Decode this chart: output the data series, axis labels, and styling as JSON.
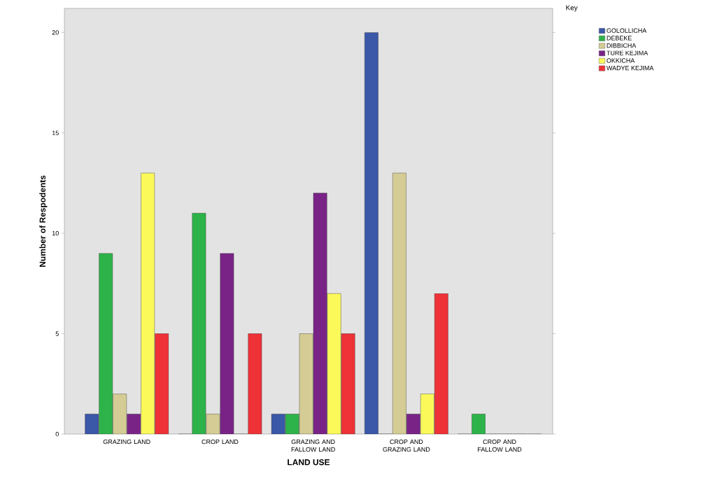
{
  "chart_data": {
    "type": "bar",
    "xlabel": "LAND USE",
    "ylabel": "Number of Respodents",
    "legend_title": "Key",
    "legend": "right",
    "categories": [
      "GRAZING LAND",
      "CROP LAND",
      "GRAZING AND FALLOW LAND",
      "CROP AND GRAZING LAND",
      "CROP AND FALLOW LAND"
    ],
    "ylim": [
      0,
      21.2
    ],
    "yticks": [
      0,
      5,
      10,
      15,
      20
    ],
    "grid": false,
    "series": [
      {
        "name": "GOLOLLICHA",
        "color": "#3a57a8",
        "values": [
          1,
          0,
          1,
          20,
          0
        ]
      },
      {
        "name": "DEBEKE",
        "color": "#2db34a",
        "values": [
          9,
          11,
          1,
          0,
          1
        ]
      },
      {
        "name": "DIBBICHA",
        "color": "#d4cc94",
        "values": [
          2,
          1,
          5,
          13,
          0
        ]
      },
      {
        "name": "TURE KEJIMA",
        "color": "#7a2387",
        "values": [
          1,
          9,
          12,
          1,
          0
        ]
      },
      {
        "name": "OKKICHA",
        "color": "#fbf95a",
        "values": [
          13,
          0,
          7,
          2,
          0
        ]
      },
      {
        "name": "WADYE KEJIMA",
        "color": "#ee3237",
        "values": [
          5,
          5,
          5,
          7,
          0
        ]
      }
    ]
  }
}
